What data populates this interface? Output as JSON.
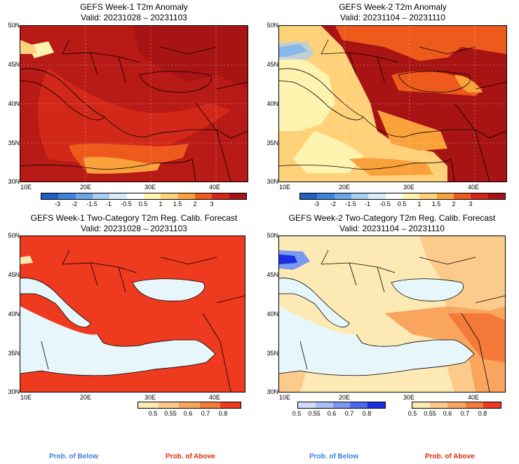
{
  "panels": [
    {
      "title": "GEFS Week-1 T2m Anomaly",
      "valid": "Valid: 20231028 – 20231103"
    },
    {
      "title": "GEFS Week-2 T2m Anomaly",
      "valid": "Valid: 20231104 – 20231110"
    },
    {
      "title": "GEFS Week-1 Two-Category T2m Reg. Calib. Forecast",
      "valid": "Valid: 20231028 – 20231103"
    },
    {
      "title": "GEFS Week-2 Two-Category T2m Reg. Calib. Forecast",
      "valid": "Valid: 20231104 – 20231110"
    }
  ],
  "lat_labels": [
    "50N",
    "45N",
    "40N",
    "35N",
    "30N"
  ],
  "lon_labels": [
    "10E",
    "20E",
    "30E",
    "40E"
  ],
  "anomaly_colorbar": {
    "labels": [
      "-3",
      "-2",
      "-1.5",
      "-1",
      "-0.5",
      "0.5",
      "1",
      "1.5",
      "2",
      "3"
    ],
    "colors": [
      "#1f5fc4",
      "#3d83db",
      "#6aa6e8",
      "#a6cdf2",
      "#d8ecfa",
      "#ffffff",
      "#fff3b0",
      "#ffd27a",
      "#f9a23c",
      "#ee5a1b",
      "#d2281a",
      "#a81414"
    ]
  },
  "prob_above_colorbar": {
    "labels": [
      "0.5",
      "0.55",
      "0.6",
      "0.7",
      "0.8"
    ],
    "colors": [
      "#fde9b4",
      "#fccb8c",
      "#f9a55e",
      "#f47a3a",
      "#ee3a1e"
    ]
  },
  "prob_below_colorbar": {
    "labels": [
      "0.5",
      "0.55",
      "0.6",
      "0.7",
      "0.8"
    ],
    "colors": [
      "#cfdcfb",
      "#a9bff8",
      "#7b98f2",
      "#4a69ec",
      "#1b2fe0"
    ]
  },
  "prob_labels": {
    "below": "Prob. of Below",
    "above": "Prob. of Above"
  },
  "colors": {
    "below": "#3b7de0",
    "above": "#e02a10",
    "sea": "#e6f6fb"
  }
}
